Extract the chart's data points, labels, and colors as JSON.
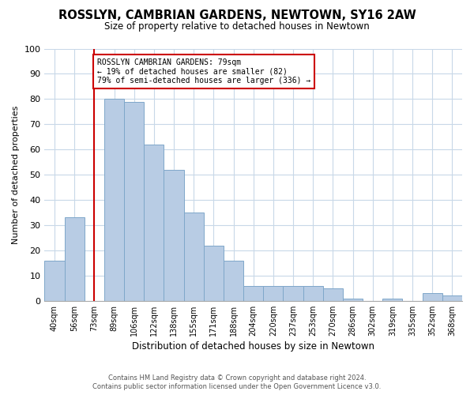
{
  "title": "ROSSLYN, CAMBRIAN GARDENS, NEWTOWN, SY16 2AW",
  "subtitle": "Size of property relative to detached houses in Newtown",
  "xlabel": "Distribution of detached houses by size in Newtown",
  "ylabel": "Number of detached properties",
  "bar_labels": [
    "40sqm",
    "56sqm",
    "73sqm",
    "89sqm",
    "106sqm",
    "122sqm",
    "138sqm",
    "155sqm",
    "171sqm",
    "188sqm",
    "204sqm",
    "220sqm",
    "237sqm",
    "253sqm",
    "270sqm",
    "286sqm",
    "302sqm",
    "319sqm",
    "335sqm",
    "352sqm",
    "368sqm"
  ],
  "bar_heights": [
    16,
    33,
    0,
    80,
    79,
    62,
    52,
    35,
    22,
    16,
    6,
    6,
    6,
    6,
    5,
    1,
    0,
    1,
    0,
    3,
    2
  ],
  "bar_color": "#b8cce4",
  "bar_edge_color": "#7fa7c9",
  "vline_x": 2,
  "vline_color": "#cc0000",
  "annotation_text": "ROSSLYN CAMBRIAN GARDENS: 79sqm\n← 19% of detached houses are smaller (82)\n79% of semi-detached houses are larger (336) →",
  "annotation_box_edgecolor": "#cc0000",
  "ylim": [
    0,
    100
  ],
  "yticks": [
    0,
    10,
    20,
    30,
    40,
    50,
    60,
    70,
    80,
    90,
    100
  ],
  "footer_line1": "Contains HM Land Registry data © Crown copyright and database right 2024.",
  "footer_line2": "Contains public sector information licensed under the Open Government Licence v3.0.",
  "background_color": "#ffffff",
  "grid_color": "#c8d8e8"
}
